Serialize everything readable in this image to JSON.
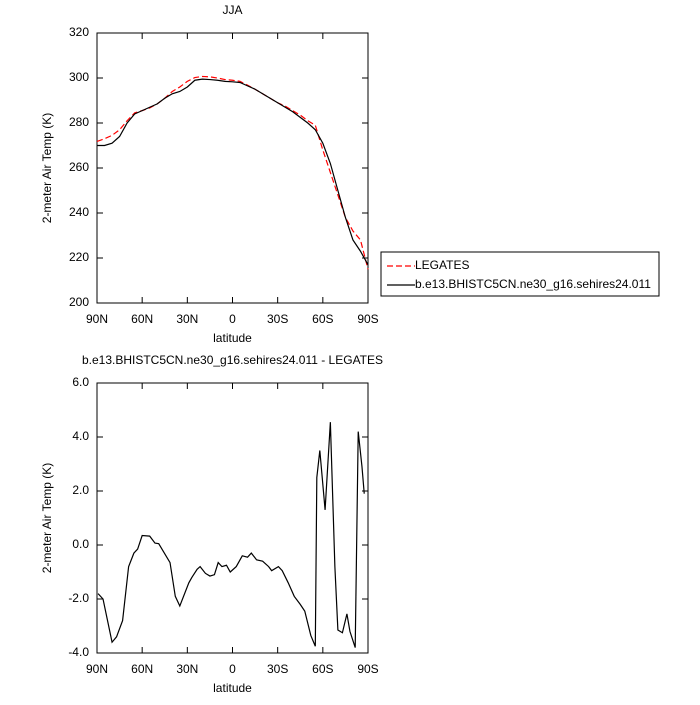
{
  "chart_data": [
    {
      "type": "line",
      "title": "JJA",
      "xlabel": "latitude",
      "ylabel": "2-meter Air Temp (K)",
      "x": [
        90,
        85,
        80,
        75,
        70,
        65,
        60,
        55,
        50,
        45,
        40,
        35,
        30,
        25,
        20,
        15,
        10,
        5,
        0,
        -5,
        -10,
        -15,
        -20,
        -25,
        -30,
        -35,
        -40,
        -45,
        -50,
        -55,
        -60,
        -65,
        -70,
        -75,
        -80,
        -85,
        -90
      ],
      "series": [
        {
          "name": "LEGATES",
          "color": "#ff0000",
          "dashed": true,
          "values": [
            271.8,
            273,
            274.5,
            277,
            281,
            284.5,
            285.5,
            286.7,
            288.5,
            291,
            294,
            296,
            298.5,
            300.2,
            300.7,
            300.5,
            300,
            299.3,
            299,
            298.5,
            296.8,
            295,
            293,
            291,
            289,
            287.5,
            285.5,
            283.5,
            281,
            279,
            268,
            258,
            248,
            238,
            232,
            228,
            215
          ]
        },
        {
          "name": "b.e13.BHISTC5CN.ne30_g16.sehires24.011",
          "color": "#000000",
          "dashed": false,
          "values": [
            270,
            270,
            271,
            274,
            280,
            284,
            285.5,
            287,
            288.5,
            291,
            293,
            294,
            296,
            299,
            299.5,
            299.3,
            299,
            298.5,
            298.3,
            298,
            296.5,
            295,
            293,
            291,
            289,
            287,
            285,
            282.5,
            280,
            277,
            271,
            262,
            250,
            238,
            228,
            223,
            217
          ]
        }
      ],
      "xlim": [
        90,
        -90
      ],
      "xticks": [
        {
          "value": 90,
          "label": "90N"
        },
        {
          "value": 60,
          "label": "60N"
        },
        {
          "value": 30,
          "label": "30N"
        },
        0,
        {
          "value": -30,
          "label": "30S"
        },
        {
          "value": -60,
          "label": "60S"
        },
        {
          "value": -90,
          "label": "90S"
        }
      ],
      "ylim": [
        200,
        320
      ],
      "yticks": [
        200,
        220,
        240,
        260,
        280,
        300,
        320
      ],
      "legend": "right"
    },
    {
      "type": "line",
      "title": "b.e13.BHISTC5CN.ne30_g16.sehires24.011 - LEGATES",
      "xlabel": "latitude",
      "ylabel": "2-meter Air Temp (K)",
      "x": [
        89.3,
        86,
        80,
        77,
        73,
        69,
        65.5,
        63,
        60,
        55,
        51.5,
        49,
        41.5,
        38,
        35,
        29,
        27,
        23.5,
        21.5,
        18,
        15,
        12,
        9.5,
        7,
        4,
        1.5,
        -2.5,
        -6.5,
        -10,
        -12.5,
        -16,
        -20,
        -24,
        -26,
        -30.5,
        -33,
        -37,
        -41,
        -45,
        -48,
        -52,
        -55,
        -56,
        -58,
        -61.5,
        -65,
        -68,
        -70,
        -73,
        -76,
        -78,
        -81.5,
        -83.5,
        -86,
        -87.5
      ],
      "series": [
        {
          "name": "b.e13.BHISTC5CN.ne30_g16.sehires24.011 - LEGATES",
          "color": "#000000",
          "values": [
            -1.8,
            -2.0,
            -3.6,
            -3.4,
            -2.8,
            -0.8,
            -0.3,
            -0.15,
            0.35,
            0.33,
            0.07,
            0.05,
            -0.65,
            -1.9,
            -2.26,
            -1.4,
            -1.2,
            -0.9,
            -0.8,
            -1.05,
            -1.15,
            -1.1,
            -0.65,
            -0.8,
            -0.75,
            -1.0,
            -0.8,
            -0.4,
            -0.45,
            -0.3,
            -0.55,
            -0.6,
            -0.8,
            -0.95,
            -0.8,
            -0.95,
            -1.4,
            -1.9,
            -2.2,
            -2.45,
            -3.35,
            -3.75,
            2.5,
            3.5,
            1.3,
            4.55,
            -0.8,
            -3.15,
            -3.25,
            -2.55,
            -3.2,
            -3.8,
            4.2,
            2.9,
            1.9
          ]
        }
      ],
      "xlim": [
        90,
        -90
      ],
      "xticks": [
        {
          "value": 90,
          "label": "90N"
        },
        {
          "value": 60,
          "label": "60N"
        },
        {
          "value": 30,
          "label": "30N"
        },
        0,
        {
          "value": -30,
          "label": "30S"
        },
        {
          "value": -60,
          "label": "60S"
        },
        {
          "value": -90,
          "label": "90S"
        }
      ],
      "ylim": [
        -4,
        6
      ],
      "yticks": [
        {
          "value": -4,
          "label": "-4.0"
        },
        {
          "value": -2,
          "label": "-2.0"
        },
        {
          "value": 0,
          "label": "0.0"
        },
        {
          "value": 2,
          "label": "2.0"
        },
        {
          "value": 4,
          "label": "4.0"
        },
        {
          "value": 6,
          "label": "6.0"
        }
      ]
    }
  ]
}
